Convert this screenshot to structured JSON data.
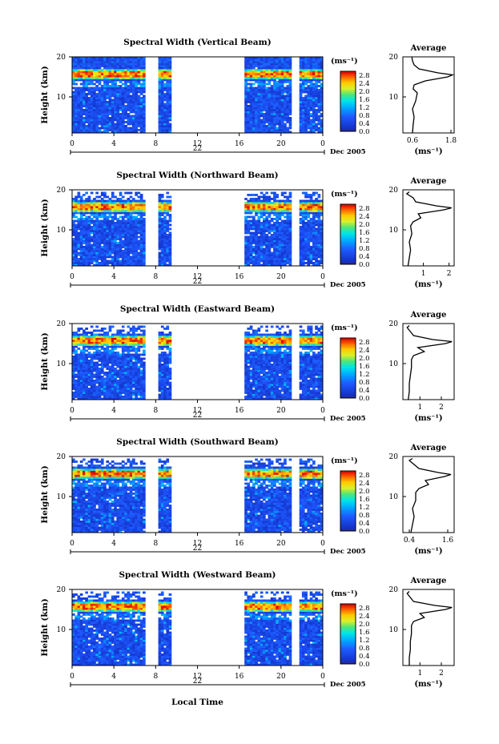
{
  "chart_data": {
    "type": "heatmap",
    "panels": [
      {
        "title": "Spectral Width (Vertical Beam)",
        "avg_ticks": [
          "0.6",
          "1.8"
        ],
        "avg_xlim": [
          0.3,
          1.9
        ],
        "avg_profile": [
          [
            1,
            0.6
          ],
          [
            3,
            0.62
          ],
          [
            5,
            0.65
          ],
          [
            7,
            0.6
          ],
          [
            9,
            0.7
          ],
          [
            11,
            0.75
          ],
          [
            12,
            0.62
          ],
          [
            13,
            0.65
          ],
          [
            14,
            1.0
          ],
          [
            15,
            1.7
          ],
          [
            15.5,
            1.85
          ],
          [
            16,
            1.4
          ],
          [
            17,
            0.8
          ],
          [
            18,
            0.65
          ],
          [
            19,
            0.6
          ],
          [
            20,
            0.58
          ]
        ]
      },
      {
        "title": "Spectral Width (Northward Beam)",
        "avg_ticks": [
          "1",
          "2"
        ],
        "avg_xlim": [
          0.2,
          2.2
        ],
        "avg_profile": [
          [
            1,
            0.4
          ],
          [
            3,
            0.45
          ],
          [
            5,
            0.5
          ],
          [
            7,
            0.45
          ],
          [
            9,
            0.55
          ],
          [
            11,
            0.5
          ],
          [
            12,
            0.6
          ],
          [
            13,
            0.9
          ],
          [
            14,
            0.8
          ],
          [
            15,
            1.8
          ],
          [
            15.5,
            2.1
          ],
          [
            16,
            1.5
          ],
          [
            17,
            0.7
          ],
          [
            18,
            0.6
          ],
          [
            19,
            0.35
          ],
          [
            19.5,
            0.45
          ]
        ]
      },
      {
        "title": "Spectral Width (Eastward Beam)",
        "avg_ticks": [
          "1",
          "2"
        ],
        "avg_xlim": [
          0.2,
          2.6
        ],
        "avg_profile": [
          [
            1,
            0.45
          ],
          [
            3,
            0.5
          ],
          [
            5,
            0.5
          ],
          [
            7,
            0.55
          ],
          [
            9,
            0.6
          ],
          [
            11,
            0.6
          ],
          [
            12,
            0.7
          ],
          [
            13,
            1.2
          ],
          [
            14,
            0.9
          ],
          [
            15,
            2.2
          ],
          [
            15.5,
            2.5
          ],
          [
            16,
            1.6
          ],
          [
            17,
            0.7
          ],
          [
            18,
            0.55
          ],
          [
            19,
            0.4
          ],
          [
            19.5,
            0.5
          ]
        ]
      },
      {
        "title": "Spectral Width (Southward Beam)",
        "avg_ticks": [
          "0.4",
          "1.6"
        ],
        "avg_xlim": [
          0.2,
          1.8
        ],
        "avg_profile": [
          [
            1,
            0.45
          ],
          [
            3,
            0.5
          ],
          [
            5,
            0.55
          ],
          [
            7,
            0.5
          ],
          [
            9,
            0.6
          ],
          [
            11,
            0.6
          ],
          [
            12,
            0.7
          ],
          [
            13,
            1.0
          ],
          [
            14,
            0.9
          ],
          [
            15,
            1.5
          ],
          [
            15.5,
            1.7
          ],
          [
            16,
            1.3
          ],
          [
            17,
            0.7
          ],
          [
            18,
            0.55
          ],
          [
            19,
            0.4
          ],
          [
            19.5,
            0.5
          ]
        ]
      },
      {
        "title": "Spectral Width (Westward Beam)",
        "avg_ticks": [
          "1",
          "2"
        ],
        "avg_xlim": [
          0.2,
          2.6
        ],
        "avg_profile": [
          [
            1,
            0.5
          ],
          [
            3,
            0.5
          ],
          [
            5,
            0.55
          ],
          [
            7,
            0.55
          ],
          [
            9,
            0.6
          ],
          [
            11,
            0.6
          ],
          [
            12,
            0.7
          ],
          [
            13,
            1.2
          ],
          [
            14,
            1.0
          ],
          [
            15,
            2.2
          ],
          [
            15.5,
            2.5
          ],
          [
            16,
            1.7
          ],
          [
            17,
            0.7
          ],
          [
            18,
            0.55
          ],
          [
            19,
            0.4
          ],
          [
            19.5,
            0.5
          ]
        ]
      }
    ],
    "x_ticks": [
      "0",
      "4",
      "8",
      "12",
      "16",
      "20",
      "0"
    ],
    "x_range": [
      0,
      24
    ],
    "y_ticks": [
      "10",
      "20"
    ],
    "y_range": [
      1,
      20
    ],
    "date_label": "22",
    "month_label": "Dec 2005",
    "xlabel": "Local Time",
    "ylabel": "Height (km)",
    "colorbar_unit": "(ms⁻¹)",
    "colorbar_ticks": [
      "0.0",
      "0.4",
      "0.8",
      "1.2",
      "1.6",
      "2.0",
      "2.4",
      "2.8"
    ],
    "colorbar_range": [
      0,
      3.0
    ],
    "avg_title": "Average",
    "avg_xlabel": "(ms⁻¹)",
    "data_gaps_hours": [
      [
        7.2,
        8.2
      ],
      [
        9.6,
        16.3
      ],
      [
        21.2,
        21.7
      ]
    ],
    "colors": {
      "low": "#0a28b4",
      "mid": "#00c8ff",
      "high": "#e61e00"
    }
  }
}
